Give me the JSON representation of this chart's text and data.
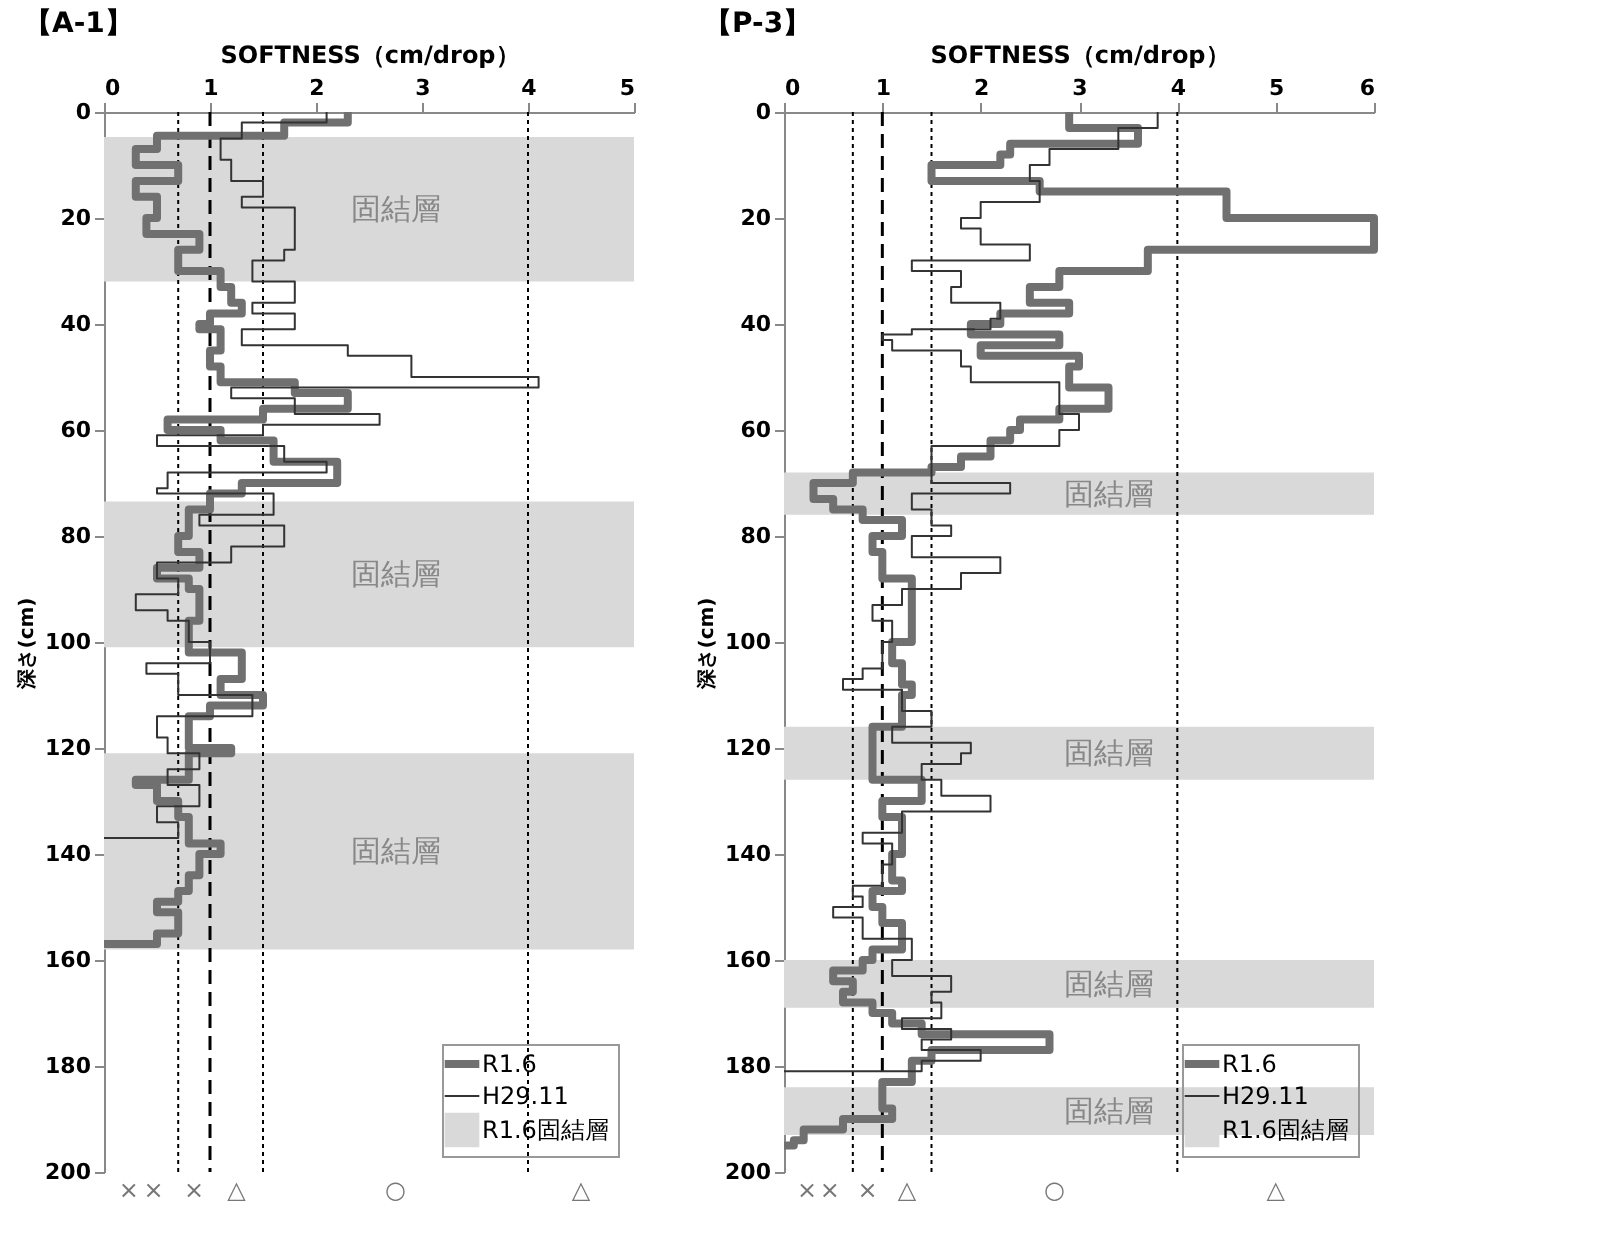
{
  "chart_data": [
    {
      "type": "step",
      "title": "【A-1】",
      "xlabel": "SOFTNESS（cm/drop）",
      "ylabel": "深さ(cm)",
      "xlim": [
        0,
        5
      ],
      "xticks": [
        0,
        1,
        2,
        3,
        4,
        5
      ],
      "ylim": [
        200,
        0
      ],
      "yticks": [
        0,
        20,
        40,
        60,
        80,
        100,
        120,
        140,
        160,
        180,
        200
      ],
      "series": [
        {
          "name": "R1.6",
          "color": "#707070",
          "x": [
            2.3,
            1.7,
            0.5,
            0.3,
            0.7,
            0.3,
            0.5,
            0.4,
            0.9,
            0.7,
            1.1,
            1.2,
            1.3,
            1.0,
            0.9,
            1.1,
            1.0,
            1.1,
            1.8,
            2.3,
            1.5,
            0.6,
            1.1,
            1.6,
            2.2,
            1.3,
            1.0,
            0.8,
            0.7,
            0.9,
            0.5,
            0.8,
            0.9,
            0.8,
            1.3,
            1.1,
            1.5,
            1.0,
            0.8,
            1.2,
            0.8,
            0.3,
            0.5,
            0.7,
            0.8,
            1.1,
            0.9,
            0.8,
            0.7,
            0.5,
            0.7,
            0.5,
            0.0
          ],
          "values": [
            0,
            2,
            4.5,
            7,
            10,
            13,
            16,
            20,
            23,
            26,
            30,
            33,
            36,
            38,
            40,
            41,
            45,
            48,
            51,
            53,
            56,
            58,
            60,
            62,
            66,
            70,
            72,
            75,
            80,
            83,
            86,
            88,
            90,
            96,
            102,
            107,
            110,
            112,
            114,
            120,
            121,
            126,
            127,
            130,
            133,
            138,
            140,
            144,
            147,
            149,
            151,
            155,
            157
          ]
        },
        {
          "name": "H29.11",
          "color": "#333333",
          "x": [
            2.1,
            1.3,
            1.1,
            1.2,
            1.5,
            1.3,
            1.8,
            1.7,
            1.4,
            1.8,
            1.4,
            1.8,
            1.3,
            2.3,
            2.9,
            4.1,
            1.2,
            1.8,
            2.6,
            1.5,
            0.5,
            1.7,
            2.1,
            0.6,
            0.5,
            1.6,
            0.9,
            1.7,
            1.2,
            0.5,
            0.7,
            0.3,
            0.6,
            0.8,
            1.0,
            0.4,
            0.7,
            1.4,
            0.5,
            0.6,
            0.9,
            0.6,
            0.9,
            0.5,
            0.7,
            0.0
          ],
          "values": [
            0,
            2,
            5,
            9,
            13,
            16,
            18,
            26,
            28,
            32,
            36,
            38,
            41,
            44,
            46,
            50,
            52,
            54,
            57,
            59,
            61,
            63,
            66,
            68,
            71,
            72,
            76,
            78,
            82,
            85,
            88,
            91,
            94,
            96,
            100,
            104,
            106,
            110,
            114,
            118,
            121,
            124,
            127,
            131,
            134,
            137
          ]
        }
      ],
      "bands": [
        {
          "axis": "y",
          "from": 4.7,
          "to": 32,
          "label": "固結層",
          "color": "#d9d9d9"
        },
        {
          "axis": "y",
          "from": 73.5,
          "to": 101,
          "label": "固結層",
          "color": "#d9d9d9"
        },
        {
          "axis": "y",
          "from": 121,
          "to": 158,
          "label": "固結層",
          "color": "#d9d9d9"
        }
      ],
      "ref_lines": [
        {
          "axis": "x",
          "value": 0.7,
          "line_style": "dotted"
        },
        {
          "axis": "x",
          "value": 1,
          "line_style": "dashed"
        },
        {
          "axis": "x",
          "value": 1.5,
          "line_style": "dotted"
        },
        {
          "axis": "x",
          "value": 4,
          "line_style": "dotted"
        }
      ],
      "annotations": [
        "R1.6固結層",
        "×",
        "×",
        "×",
        "△",
        "○",
        "△"
      ],
      "legend": "bottom right",
      "grid": false,
      "line_style": "solid",
      "marker": "none"
    },
    {
      "type": "step",
      "title": "【P-3】",
      "xlabel": "SOFTNESS（cm/drop）",
      "ylabel": "深さ(cm)",
      "xlim": [
        0,
        6
      ],
      "xticks": [
        0,
        1,
        2,
        3,
        4,
        5,
        6
      ],
      "ylim": [
        200,
        0
      ],
      "yticks": [
        0,
        20,
        40,
        60,
        80,
        100,
        120,
        140,
        160,
        180,
        200
      ],
      "series": [
        {
          "name": "R1.6",
          "color": "#707070",
          "x": [
            2.9,
            3.6,
            2.3,
            2.2,
            1.5,
            2.6,
            4.5,
            6.0,
            3.7,
            2.8,
            2.5,
            2.9,
            2.2,
            1.9,
            2.8,
            2.0,
            3.0,
            2.9,
            3.3,
            2.8,
            2.4,
            2.3,
            2.1,
            1.8,
            1.5,
            0.7,
            0.3,
            0.5,
            0.8,
            1.2,
            0.9,
            1.0,
            1.3,
            1.1,
            1.2,
            1.3,
            1.2,
            0.9,
            1.4,
            1.0,
            1.2,
            1.1,
            1.2,
            0.9,
            1.0,
            1.2,
            0.9,
            0.8,
            0.5,
            0.7,
            0.6,
            0.9,
            1.1,
            1.4,
            2.7,
            1.5,
            1.3,
            1.0,
            1.1,
            0.6,
            0.2,
            0.1,
            0.0
          ],
          "values": [
            0,
            3,
            6,
            8,
            10,
            13,
            15,
            20,
            26,
            30,
            33,
            36,
            38,
            40,
            42,
            44,
            46,
            48,
            52,
            56,
            58,
            60,
            62,
            65,
            67,
            68,
            70,
            73,
            75,
            77,
            80,
            83,
            88,
            100,
            104,
            108,
            110,
            116,
            126,
            130,
            133,
            140,
            145,
            147,
            150,
            153,
            158,
            160,
            162,
            164,
            166,
            168,
            170,
            172,
            174,
            177,
            179,
            183,
            188,
            190,
            192,
            194,
            195
          ]
        },
        {
          "name": "H29.11",
          "color": "#333333",
          "x": [
            3.8,
            3.4,
            2.7,
            2.5,
            2.6,
            2.0,
            1.8,
            2.0,
            2.5,
            1.3,
            1.8,
            1.7,
            2.2,
            2.1,
            1.3,
            1.0,
            1.1,
            1.8,
            1.9,
            2.8,
            3.0,
            2.8,
            1.5,
            2.3,
            1.3,
            1.5,
            1.7,
            1.3,
            2.2,
            1.8,
            1.2,
            0.9,
            1.1,
            1.0,
            0.8,
            0.6,
            1.2,
            1.5,
            1.1,
            1.9,
            1.8,
            1.4,
            1.6,
            2.1,
            1.2,
            0.8,
            1.1,
            1.0,
            0.7,
            0.8,
            0.5,
            0.8,
            1.3,
            1.1,
            1.7,
            1.5,
            1.6,
            1.2,
            1.7,
            1.4,
            2.0,
            1.4,
            0.0
          ],
          "values": [
            0,
            3,
            7,
            10,
            13,
            17,
            20,
            22,
            25,
            28,
            30,
            33,
            36,
            39,
            41,
            42,
            43,
            45,
            48,
            51,
            57,
            60,
            63,
            70,
            72,
            75,
            78,
            80,
            84,
            87,
            90,
            93,
            96,
            100,
            105,
            107,
            109,
            113,
            116,
            119,
            121,
            123,
            126,
            129,
            132,
            136,
            138,
            142,
            146,
            148,
            150,
            152,
            156,
            160,
            163,
            166,
            168,
            171,
            173,
            175,
            177,
            179,
            181
          ]
        }
      ],
      "bands": [
        {
          "axis": "y",
          "from": 68,
          "to": 76,
          "label": "固結層",
          "color": "#d9d9d9"
        },
        {
          "axis": "y",
          "from": 116,
          "to": 126,
          "label": "固結層",
          "color": "#d9d9d9"
        },
        {
          "axis": "y",
          "from": 160,
          "to": 169,
          "label": "固結層",
          "color": "#d9d9d9"
        },
        {
          "axis": "y",
          "from": 184,
          "to": 193,
          "label": "固結層",
          "color": "#d9d9d9"
        }
      ],
      "ref_lines": [
        {
          "axis": "x",
          "value": 0.7,
          "line_style": "dotted"
        },
        {
          "axis": "x",
          "value": 1,
          "line_style": "dashed"
        },
        {
          "axis": "x",
          "value": 1.5,
          "line_style": "dotted"
        },
        {
          "axis": "x",
          "value": 4,
          "line_style": "dotted"
        }
      ],
      "annotations": [
        "R1.6固結層",
        "×",
        "×",
        "×",
        "△",
        "○",
        "△"
      ],
      "legend": "bottom right",
      "grid": false,
      "line_style": "solid",
      "marker": "none"
    }
  ]
}
